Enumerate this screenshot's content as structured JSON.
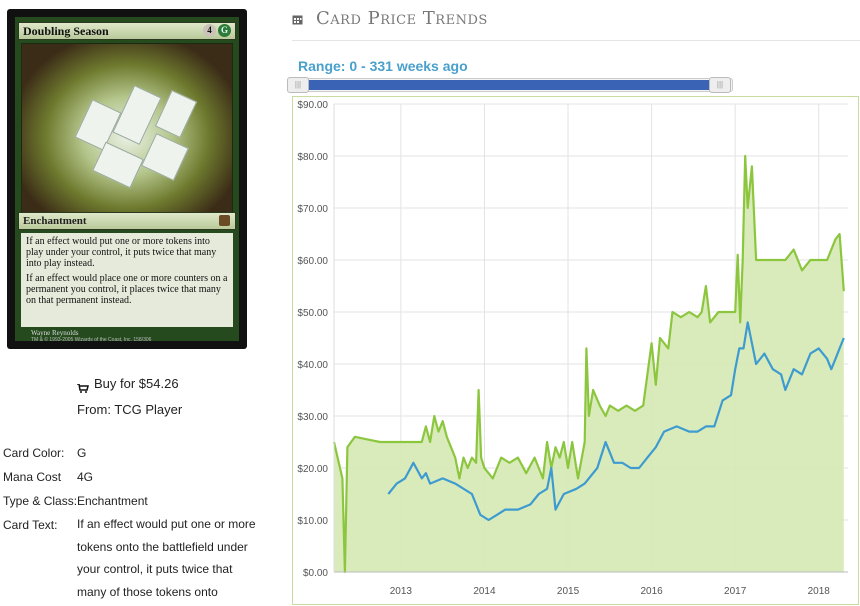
{
  "card": {
    "name": "Doubling Season",
    "cost_generic": "4",
    "cost_color": "G",
    "type_line": "Enchantment",
    "rules_1": "If an effect would put one or more tokens into play under your control, it puts twice that many into play instead.",
    "rules_2": "If an effect would place one or more counters on a permanent you control, it places twice that many on that permanent instead.",
    "artist": "Wayne Reynolds",
    "copyright": "TM & © 1993-2005 Wizards of the Coast, Inc. 158/306"
  },
  "buy": {
    "label": "Buy for $54.26",
    "from": "From: TCG Player"
  },
  "info": [
    {
      "key": "Card Color:",
      "value": "G"
    },
    {
      "key": "Mana Cost",
      "value": "4G"
    },
    {
      "key": "Type & Class:",
      "value": "Enchantment"
    },
    {
      "key": "Card Text:",
      "value": "If an effect would put one or more tokens onto the battlefield under your control, it puts twice that many of those tokens onto"
    }
  ],
  "header": {
    "title": "Card Price Trends",
    "range_label": "Range: 0 - 331 weeks ago",
    "range_from_weeks": 0,
    "range_to_weeks": 331
  },
  "colors": {
    "green_line": "#8cc63f",
    "green_fill": "#d6e9b4",
    "blue_line": "#3d9bd0",
    "slider_fill": "#3a63b5"
  },
  "chart_data": {
    "type": "line",
    "title": "",
    "xlabel": "",
    "ylabel": "",
    "ylim": [
      0,
      90
    ],
    "xlim": [
      2012.2,
      2018.35
    ],
    "yticks": [
      "$0.00",
      "$10.00",
      "$20.00",
      "$30.00",
      "$40.00",
      "$50.00",
      "$60.00",
      "$70.00",
      "$80.00",
      "$90.00"
    ],
    "ytick_values": [
      0,
      10,
      20,
      30,
      40,
      50,
      60,
      70,
      80,
      90
    ],
    "xticks": [
      "2013",
      "2014",
      "2015",
      "2016",
      "2017",
      "2018"
    ],
    "xtick_values": [
      2013,
      2014,
      2015,
      2016,
      2017,
      2018
    ],
    "grid": true,
    "legend": "none",
    "series": [
      {
        "color": "#8cc63f",
        "fill": true,
        "points": [
          [
            2012.2,
            25
          ],
          [
            2012.3,
            18
          ],
          [
            2012.33,
            0
          ],
          [
            2012.36,
            24
          ],
          [
            2012.45,
            26
          ],
          [
            2012.6,
            25.5
          ],
          [
            2012.75,
            25
          ],
          [
            2012.9,
            25
          ],
          [
            2013.0,
            25
          ],
          [
            2013.15,
            25
          ],
          [
            2013.25,
            25
          ],
          [
            2013.3,
            28
          ],
          [
            2013.35,
            25
          ],
          [
            2013.4,
            30
          ],
          [
            2013.45,
            27
          ],
          [
            2013.5,
            29
          ],
          [
            2013.55,
            26
          ],
          [
            2013.6,
            24
          ],
          [
            2013.65,
            22
          ],
          [
            2013.7,
            18
          ],
          [
            2013.75,
            22
          ],
          [
            2013.8,
            20
          ],
          [
            2013.85,
            22
          ],
          [
            2013.9,
            21
          ],
          [
            2013.93,
            35
          ],
          [
            2013.96,
            22
          ],
          [
            2014.0,
            20
          ],
          [
            2014.1,
            18
          ],
          [
            2014.2,
            22
          ],
          [
            2014.3,
            21
          ],
          [
            2014.4,
            22
          ],
          [
            2014.5,
            19
          ],
          [
            2014.6,
            22
          ],
          [
            2014.7,
            18
          ],
          [
            2014.75,
            25
          ],
          [
            2014.8,
            20
          ],
          [
            2014.85,
            24
          ],
          [
            2014.9,
            22
          ],
          [
            2014.95,
            25
          ],
          [
            2015.0,
            20
          ],
          [
            2015.05,
            25
          ],
          [
            2015.12,
            18
          ],
          [
            2015.2,
            25
          ],
          [
            2015.22,
            43
          ],
          [
            2015.25,
            30
          ],
          [
            2015.3,
            35
          ],
          [
            2015.38,
            32
          ],
          [
            2015.45,
            30
          ],
          [
            2015.5,
            32
          ],
          [
            2015.6,
            31
          ],
          [
            2015.7,
            32
          ],
          [
            2015.8,
            31
          ],
          [
            2015.9,
            32
          ],
          [
            2016.0,
            44
          ],
          [
            2016.05,
            36
          ],
          [
            2016.1,
            45
          ],
          [
            2016.2,
            43
          ],
          [
            2016.25,
            50
          ],
          [
            2016.35,
            49
          ],
          [
            2016.45,
            50
          ],
          [
            2016.55,
            49
          ],
          [
            2016.6,
            50
          ],
          [
            2016.65,
            55
          ],
          [
            2016.7,
            48
          ],
          [
            2016.8,
            50
          ],
          [
            2016.9,
            50
          ],
          [
            2017.0,
            50
          ],
          [
            2017.03,
            61
          ],
          [
            2017.06,
            48
          ],
          [
            2017.09,
            60
          ],
          [
            2017.12,
            80
          ],
          [
            2017.15,
            70
          ],
          [
            2017.2,
            78
          ],
          [
            2017.25,
            60
          ],
          [
            2017.35,
            60
          ],
          [
            2017.5,
            60
          ],
          [
            2017.6,
            60
          ],
          [
            2017.65,
            61
          ],
          [
            2017.7,
            62
          ],
          [
            2017.8,
            58
          ],
          [
            2017.9,
            60
          ],
          [
            2018.0,
            60
          ],
          [
            2018.1,
            60
          ],
          [
            2018.2,
            64
          ],
          [
            2018.25,
            65
          ],
          [
            2018.3,
            54
          ]
        ]
      },
      {
        "color": "#3d9bd0",
        "fill": false,
        "points": [
          [
            2012.85,
            15
          ],
          [
            2012.95,
            17
          ],
          [
            2013.05,
            18
          ],
          [
            2013.15,
            21
          ],
          [
            2013.25,
            18
          ],
          [
            2013.3,
            19
          ],
          [
            2013.35,
            17
          ],
          [
            2013.5,
            18
          ],
          [
            2013.65,
            17
          ],
          [
            2013.85,
            15
          ],
          [
            2013.95,
            11
          ],
          [
            2014.05,
            10
          ],
          [
            2014.15,
            11
          ],
          [
            2014.25,
            12
          ],
          [
            2014.4,
            12
          ],
          [
            2014.55,
            13
          ],
          [
            2014.65,
            15
          ],
          [
            2014.75,
            16
          ],
          [
            2014.8,
            20
          ],
          [
            2014.85,
            12
          ],
          [
            2014.95,
            15
          ],
          [
            2015.1,
            16
          ],
          [
            2015.2,
            17
          ],
          [
            2015.35,
            20
          ],
          [
            2015.45,
            25
          ],
          [
            2015.55,
            21
          ],
          [
            2015.65,
            21
          ],
          [
            2015.75,
            20
          ],
          [
            2015.85,
            20
          ],
          [
            2015.95,
            22
          ],
          [
            2016.05,
            24
          ],
          [
            2016.15,
            27
          ],
          [
            2016.3,
            28
          ],
          [
            2016.45,
            27
          ],
          [
            2016.55,
            27
          ],
          [
            2016.65,
            28
          ],
          [
            2016.75,
            28
          ],
          [
            2016.85,
            33
          ],
          [
            2016.95,
            34
          ],
          [
            2017.0,
            39
          ],
          [
            2017.05,
            43
          ],
          [
            2017.1,
            43
          ],
          [
            2017.15,
            48
          ],
          [
            2017.2,
            44
          ],
          [
            2017.25,
            40
          ],
          [
            2017.35,
            42
          ],
          [
            2017.45,
            39
          ],
          [
            2017.55,
            38
          ],
          [
            2017.6,
            35
          ],
          [
            2017.7,
            39
          ],
          [
            2017.8,
            38
          ],
          [
            2017.9,
            42
          ],
          [
            2018.0,
            43
          ],
          [
            2018.1,
            41
          ],
          [
            2018.15,
            39
          ],
          [
            2018.2,
            41
          ],
          [
            2018.25,
            43
          ],
          [
            2018.3,
            45
          ]
        ]
      }
    ]
  }
}
